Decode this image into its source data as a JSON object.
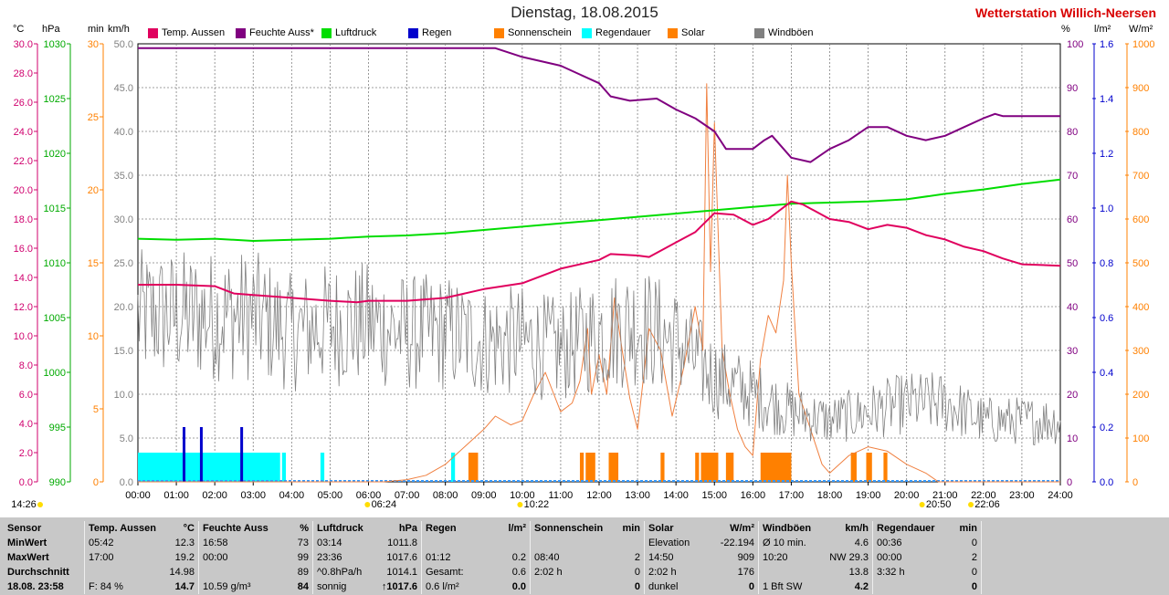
{
  "header": {
    "title": "Dienstag, 18.08.2015",
    "station": "Wetterstation Willich-Neersen"
  },
  "axes": {
    "left_units": [
      "°C",
      "hPa",
      "min",
      "km/h"
    ],
    "right_units": [
      "%",
      "l/m²",
      "W/m²"
    ],
    "temp_ticks": [
      "30.0",
      "28.0",
      "26.0",
      "24.0",
      "22.0",
      "20.0",
      "18.0",
      "16.0",
      "14.0",
      "12.0",
      "10.0",
      "8.0",
      "6.0",
      "4.0",
      "2.0",
      "0.0"
    ],
    "press_ticks": [
      "1030",
      "1025",
      "1020",
      "1015",
      "1010",
      "1005",
      "1000",
      "995",
      "990"
    ],
    "min_ticks": [
      "30",
      "25",
      "20",
      "15",
      "10",
      "5",
      "0"
    ],
    "wind_ticks": [
      "50.0",
      "45.0",
      "40.0",
      "35.0",
      "30.0",
      "25.0",
      "20.0",
      "15.0",
      "10.0",
      "5.0",
      "0.0"
    ],
    "hum_ticks": [
      "100",
      "90",
      "80",
      "70",
      "60",
      "50",
      "40",
      "30",
      "20",
      "10",
      "0"
    ],
    "rain_ticks": [
      "1.6",
      "1.4",
      "1.2",
      "1.0",
      "0.8",
      "0.6",
      "0.4",
      "0.2",
      "0.0"
    ],
    "solar_ticks": [
      "1000",
      "900",
      "800",
      "700",
      "600",
      "500",
      "400",
      "300",
      "200",
      "100",
      "0"
    ],
    "time_ticks": [
      "00:00",
      "01:00",
      "02:00",
      "03:00",
      "04:00",
      "05:00",
      "06:00",
      "07:00",
      "08:00",
      "09:00",
      "10:00",
      "11:00",
      "12:00",
      "13:00",
      "14:00",
      "15:00",
      "16:00",
      "17:00",
      "18:00",
      "19:00",
      "20:00",
      "21:00",
      "22:00",
      "23:00",
      "24:00"
    ],
    "markers": [
      {
        "label": "14:26",
        "x": 0
      },
      {
        "label": "06:24",
        "x": 6.4
      },
      {
        "label": "10:22",
        "x": 10.37
      },
      {
        "label": "20:50",
        "x": 20.83
      },
      {
        "label": "22:06",
        "x": 22.1
      }
    ]
  },
  "legend": [
    {
      "label": "Temp. Aussen",
      "color": "#e0005e"
    },
    {
      "label": "Feuchte Auss*",
      "color": "#800080"
    },
    {
      "label": "Luftdruck",
      "color": "#00dd00"
    },
    {
      "label": "Regen",
      "color": "#0000cc"
    },
    {
      "label": "Sonnenschein",
      "color": "#ff8000"
    },
    {
      "label": "Regendauer",
      "color": "#00ffff"
    },
    {
      "label": "Solar",
      "color": "#ff8000"
    },
    {
      "label": "Windböen",
      "color": "#808080"
    }
  ],
  "colors": {
    "temp": "#e0005e",
    "humidity": "#800080",
    "pressure": "#00dd00",
    "rain": "#0000cc",
    "sunshine": "#ff8000",
    "rainduration": "#00ffff",
    "solar": "#f08040",
    "wind": "#808080",
    "temp_axis": "#d0006e",
    "pressure_axis": "#00aa00",
    "min_axis": "#ff8000",
    "wind_axis": "#808080",
    "hum_axis": "#800080",
    "rain_axis": "#0000cc",
    "solar_axis": "#ff8000"
  },
  "chart_data": {
    "type": "line",
    "title": "Dienstag, 18.08.2015",
    "x_unit": "hour of day",
    "xlim": [
      0,
      24
    ],
    "series": [
      {
        "name": "Temp. Aussen",
        "unit": "°C",
        "ylim": [
          0,
          30
        ],
        "points": [
          [
            0,
            13.5
          ],
          [
            1,
            13.5
          ],
          [
            2,
            13.4
          ],
          [
            2.5,
            12.9
          ],
          [
            3,
            12.8
          ],
          [
            4,
            12.6
          ],
          [
            5,
            12.4
          ],
          [
            5.7,
            12.3
          ],
          [
            6,
            12.4
          ],
          [
            7,
            12.4
          ],
          [
            8,
            12.6
          ],
          [
            9,
            13.2
          ],
          [
            10,
            13.6
          ],
          [
            11,
            14.6
          ],
          [
            12,
            15.2
          ],
          [
            12.3,
            15.6
          ],
          [
            13,
            15.5
          ],
          [
            13.3,
            15.4
          ],
          [
            14,
            16.4
          ],
          [
            14.5,
            17.1
          ],
          [
            15,
            18.4
          ],
          [
            15.5,
            18.3
          ],
          [
            16,
            17.6
          ],
          [
            16.4,
            18.0
          ],
          [
            17,
            19.2
          ],
          [
            17.3,
            19.0
          ],
          [
            18,
            18.0
          ],
          [
            18.5,
            17.8
          ],
          [
            19,
            17.3
          ],
          [
            19.5,
            17.6
          ],
          [
            20,
            17.4
          ],
          [
            20.5,
            16.9
          ],
          [
            21,
            16.6
          ],
          [
            21.5,
            16.1
          ],
          [
            22,
            15.8
          ],
          [
            22.5,
            15.3
          ],
          [
            23,
            14.9
          ],
          [
            24,
            14.8
          ]
        ]
      },
      {
        "name": "Feuchte Auss*",
        "unit": "%",
        "ylim": [
          0,
          100
        ],
        "points": [
          [
            0,
            99
          ],
          [
            9.3,
            99
          ],
          [
            10,
            97
          ],
          [
            11,
            95
          ],
          [
            11.5,
            93
          ],
          [
            12,
            91
          ],
          [
            12.3,
            88
          ],
          [
            12.8,
            87
          ],
          [
            13.5,
            87.5
          ],
          [
            14,
            85
          ],
          [
            14.5,
            83
          ],
          [
            15,
            80
          ],
          [
            15.3,
            76
          ],
          [
            16,
            76
          ],
          [
            16.3,
            78
          ],
          [
            16.5,
            79
          ],
          [
            17,
            74
          ],
          [
            17.5,
            73
          ],
          [
            18,
            76
          ],
          [
            18.5,
            78
          ],
          [
            19,
            81
          ],
          [
            19.5,
            81
          ],
          [
            20,
            79
          ],
          [
            20.5,
            78
          ],
          [
            21,
            79
          ],
          [
            21.5,
            81
          ],
          [
            22,
            83
          ],
          [
            22.3,
            84
          ],
          [
            22.5,
            83.5
          ],
          [
            24,
            83.5
          ]
        ]
      },
      {
        "name": "Luftdruck",
        "unit": "hPa",
        "ylim": [
          990,
          1030
        ],
        "points": [
          [
            0,
            1012.2
          ],
          [
            1,
            1012.1
          ],
          [
            2,
            1012.2
          ],
          [
            3,
            1012.0
          ],
          [
            4,
            1012.1
          ],
          [
            5,
            1012.2
          ],
          [
            6,
            1012.4
          ],
          [
            7,
            1012.5
          ],
          [
            8,
            1012.7
          ],
          [
            9,
            1013.0
          ],
          [
            10,
            1013.3
          ],
          [
            11,
            1013.6
          ],
          [
            12,
            1013.9
          ],
          [
            13,
            1014.2
          ],
          [
            14,
            1014.5
          ],
          [
            15,
            1014.8
          ],
          [
            16,
            1015.1
          ],
          [
            17,
            1015.4
          ],
          [
            18,
            1015.5
          ],
          [
            19,
            1015.6
          ],
          [
            20,
            1015.8
          ],
          [
            21,
            1016.3
          ],
          [
            22,
            1016.7
          ],
          [
            23,
            1017.2
          ],
          [
            24,
            1017.6
          ]
        ]
      },
      {
        "name": "Regen",
        "unit": "l/m²",
        "ylim": [
          0,
          1.6
        ],
        "type": "bar",
        "points": [
          [
            1.2,
            0.2
          ],
          [
            1.65,
            0.2
          ],
          [
            2.7,
            0.2
          ]
        ]
      },
      {
        "name": "Regendauer",
        "unit": "min",
        "ylim": [
          0,
          30
        ],
        "type": "bar",
        "intervals": [
          [
            0,
            3.7,
            2
          ],
          [
            3.75,
            3.85,
            2
          ],
          [
            4.75,
            4.85,
            2
          ],
          [
            8.15,
            8.25,
            2
          ]
        ]
      },
      {
        "name": "Sonnenschein",
        "unit": "min",
        "ylim": [
          0,
          30
        ],
        "type": "bar",
        "intervals": [
          [
            8.6,
            8.85,
            2
          ],
          [
            11.5,
            11.6,
            2
          ],
          [
            11.65,
            11.9,
            2
          ],
          [
            12.25,
            12.5,
            2
          ],
          [
            13.6,
            13.7,
            2
          ],
          [
            14.5,
            14.6,
            2
          ],
          [
            14.65,
            15.1,
            2
          ],
          [
            15.3,
            15.5,
            2
          ],
          [
            16.2,
            17.0,
            2
          ],
          [
            18.55,
            18.7,
            2
          ],
          [
            18.95,
            19.1,
            2
          ],
          [
            19.4,
            19.5,
            2
          ]
        ]
      },
      {
        "name": "Solar",
        "unit": "W/m²",
        "ylim": [
          0,
          1000
        ],
        "points": [
          [
            0,
            0
          ],
          [
            6.4,
            0
          ],
          [
            7,
            5
          ],
          [
            7.5,
            15
          ],
          [
            8,
            40
          ],
          [
            8.5,
            80
          ],
          [
            9,
            120
          ],
          [
            9.3,
            150
          ],
          [
            9.7,
            130
          ],
          [
            10,
            140
          ],
          [
            10.3,
            200
          ],
          [
            10.6,
            250
          ],
          [
            11,
            160
          ],
          [
            11.3,
            180
          ],
          [
            11.5,
            230
          ],
          [
            11.7,
            350
          ],
          [
            11.8,
            200
          ],
          [
            12,
            290
          ],
          [
            12.2,
            200
          ],
          [
            12.4,
            420
          ],
          [
            12.6,
            300
          ],
          [
            12.8,
            190
          ],
          [
            13,
            120
          ],
          [
            13.3,
            350
          ],
          [
            13.6,
            300
          ],
          [
            13.9,
            150
          ],
          [
            14.2,
            260
          ],
          [
            14.5,
            400
          ],
          [
            14.7,
            300
          ],
          [
            14.8,
            909
          ],
          [
            14.9,
            480
          ],
          [
            15.0,
            820
          ],
          [
            15.2,
            300
          ],
          [
            15.4,
            200
          ],
          [
            15.6,
            120
          ],
          [
            15.8,
            80
          ],
          [
            16.0,
            60
          ],
          [
            16.2,
            280
          ],
          [
            16.4,
            380
          ],
          [
            16.6,
            340
          ],
          [
            16.8,
            460
          ],
          [
            16.9,
            700
          ],
          [
            17.0,
            500
          ],
          [
            17.2,
            200
          ],
          [
            17.5,
            120
          ],
          [
            17.8,
            40
          ],
          [
            18,
            20
          ],
          [
            18.5,
            60
          ],
          [
            19,
            80
          ],
          [
            19.5,
            70
          ],
          [
            20,
            40
          ],
          [
            20.5,
            20
          ],
          [
            20.83,
            0
          ],
          [
            24,
            0
          ]
        ]
      },
      {
        "name": "Windböen",
        "unit": "km/h",
        "ylim": [
          0,
          50
        ],
        "generated": "noise",
        "envelope": [
          [
            0,
            19
          ],
          [
            3,
            19
          ],
          [
            4,
            17
          ],
          [
            5,
            18
          ],
          [
            6,
            18
          ],
          [
            7,
            17
          ],
          [
            8,
            17
          ],
          [
            9,
            16
          ],
          [
            10,
            16
          ],
          [
            11,
            15
          ],
          [
            12,
            17
          ],
          [
            13,
            18
          ],
          [
            14,
            16
          ],
          [
            15,
            12
          ],
          [
            16,
            10
          ],
          [
            17,
            8
          ],
          [
            18,
            7
          ],
          [
            19,
            8
          ],
          [
            20,
            9
          ],
          [
            21,
            9
          ],
          [
            22,
            7
          ],
          [
            23,
            7
          ],
          [
            24,
            7
          ]
        ]
      }
    ]
  },
  "stats": {
    "columns": [
      {
        "header": [
          "Sensor",
          ""
        ],
        "rows": [
          [
            "MinWert",
            ""
          ],
          [
            "MaxWert",
            ""
          ],
          [
            "Durchschnitt",
            ""
          ],
          [
            "18.08. 23:58",
            ""
          ]
        ],
        "bold_last": true
      },
      {
        "header": [
          "Temp. Aussen",
          "°C"
        ],
        "rows": [
          [
            "05:42",
            "12.3"
          ],
          [
            "17:00",
            "19.2"
          ],
          [
            "",
            "14.98"
          ],
          [
            "F: 84 %",
            "14.7"
          ]
        ]
      },
      {
        "header": [
          "Feuchte Auss",
          "%"
        ],
        "rows": [
          [
            "16:58",
            "73"
          ],
          [
            "00:00",
            "99"
          ],
          [
            "",
            "89"
          ],
          [
            "10.59 g/m³",
            "84"
          ]
        ]
      },
      {
        "header": [
          "Luftdruck",
          "hPa"
        ],
        "rows": [
          [
            "03:14",
            "1011.8"
          ],
          [
            "23:36",
            "1017.6"
          ],
          [
            "^0.8hPa/h",
            "1014.1"
          ],
          [
            "sonnig",
            "↑1017.6"
          ]
        ]
      },
      {
        "header": [
          "Regen",
          "l/m²"
        ],
        "rows": [
          [
            "",
            ""
          ],
          [
            "01:12",
            "0.2"
          ],
          [
            "Gesamt:",
            "0.6"
          ],
          [
            "0.6 l/m²",
            "0.0"
          ]
        ]
      },
      {
        "header": [
          "Sonnenschein",
          "min"
        ],
        "rows": [
          [
            "",
            ""
          ],
          [
            "08:40",
            "2"
          ],
          [
            "2:02 h",
            "0"
          ],
          [
            "",
            "0"
          ]
        ]
      },
      {
        "header": [
          "Solar",
          "W/m²"
        ],
        "rows": [
          [
            "Elevation",
            "-22.194"
          ],
          [
            "14:50",
            "909"
          ],
          [
            "2:02 h",
            "176"
          ],
          [
            "dunkel",
            "0"
          ]
        ]
      },
      {
        "header": [
          "Windböen",
          "km/h"
        ],
        "rows": [
          [
            "Ø 10 min.",
            "4.6"
          ],
          [
            "10:20",
            "NW 29.3"
          ],
          [
            "",
            "13.8"
          ],
          [
            "1 Bft SW",
            "4.2"
          ]
        ]
      },
      {
        "header": [
          "Regendauer",
          "min"
        ],
        "rows": [
          [
            "00:36",
            "0"
          ],
          [
            "00:00",
            "2"
          ],
          [
            "3:32 h",
            "0"
          ],
          [
            "",
            "0"
          ]
        ]
      }
    ]
  }
}
